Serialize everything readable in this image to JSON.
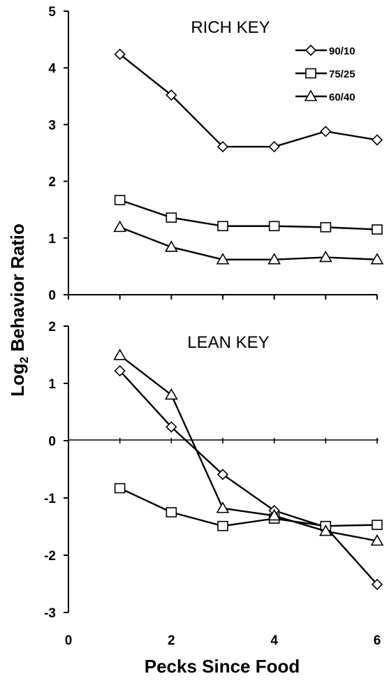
{
  "chart_data": [
    {
      "type": "line",
      "panel": "top",
      "title": "RICH KEY",
      "xlabel": "Pecks Since Food",
      "ylabel": "Log2 Behavior Ratio",
      "ylabel_main": "Log",
      "ylabel_sub": "2",
      "ylabel_rest": " Behavior Ratio",
      "xlim": [
        0,
        6
      ],
      "ylim": [
        0,
        5
      ],
      "xticks": [
        0,
        2,
        4,
        6
      ],
      "yticks": [
        0,
        1,
        2,
        3,
        4,
        5
      ],
      "legend": "top-right",
      "grid": false,
      "x": [
        1,
        2,
        3,
        4,
        5,
        6
      ],
      "series": [
        {
          "name": "90/10",
          "marker": "diamond",
          "values": [
            4.24,
            3.52,
            2.61,
            2.61,
            2.88,
            2.73
          ]
        },
        {
          "name": "75/25",
          "marker": "square",
          "values": [
            1.67,
            1.36,
            1.21,
            1.21,
            1.19,
            1.15
          ]
        },
        {
          "name": "60/40",
          "marker": "triangle",
          "values": [
            1.19,
            0.84,
            0.62,
            0.62,
            0.66,
            0.62
          ]
        }
      ]
    },
    {
      "type": "line",
      "panel": "bottom",
      "title": "LEAN KEY",
      "xlim": [
        0,
        6
      ],
      "ylim": [
        -3,
        2
      ],
      "xticks": [
        0,
        2,
        4,
        6
      ],
      "yticks": [
        -3,
        -2,
        -1,
        0,
        1,
        2
      ],
      "reference_line_y": 0,
      "grid": false,
      "x": [
        1,
        2,
        3,
        4,
        5,
        6
      ],
      "series": [
        {
          "name": "90/10",
          "marker": "diamond",
          "values": [
            1.22,
            0.24,
            -0.59,
            -1.22,
            -1.51,
            -2.51
          ]
        },
        {
          "name": "75/25",
          "marker": "square",
          "values": [
            -0.83,
            -1.25,
            -1.49,
            -1.36,
            -1.49,
            -1.47
          ]
        },
        {
          "name": "60/40",
          "marker": "triangle",
          "values": [
            1.49,
            0.8,
            -1.18,
            -1.31,
            -1.58,
            -1.75
          ]
        }
      ]
    }
  ]
}
